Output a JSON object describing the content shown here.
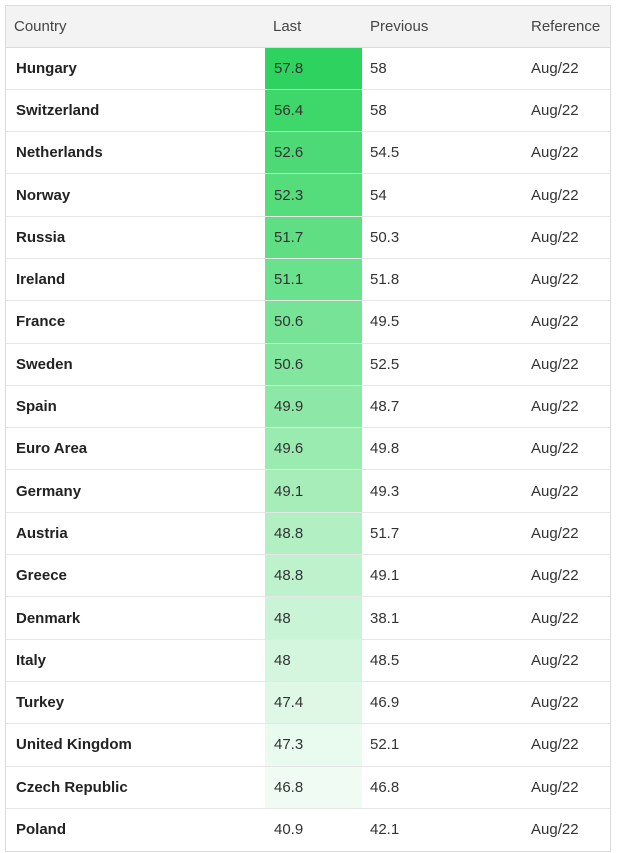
{
  "table": {
    "headers": {
      "country": "Country",
      "last": "Last",
      "previous": "Previous",
      "reference": "Reference"
    },
    "rows": [
      {
        "country": "Hungary",
        "last": "57.8",
        "previous": "58",
        "reference": "Aug/22",
        "heat_color": "#2ed35f"
      },
      {
        "country": "Switzerland",
        "last": "56.4",
        "previous": "58",
        "reference": "Aug/22",
        "heat_color": "#3dd76a"
      },
      {
        "country": "Netherlands",
        "last": "52.6",
        "previous": "54.5",
        "reference": "Aug/22",
        "heat_color": "#4dda76"
      },
      {
        "country": "Norway",
        "last": "52.3",
        "previous": "54",
        "reference": "Aug/22",
        "heat_color": "#55dc7b"
      },
      {
        "country": "Russia",
        "last": "51.7",
        "previous": "50.3",
        "reference": "Aug/22",
        "heat_color": "#5fde83"
      },
      {
        "country": "Ireland",
        "last": "51.1",
        "previous": "51.8",
        "reference": "Aug/22",
        "heat_color": "#6ae18c"
      },
      {
        "country": "France",
        "last": "50.6",
        "previous": "49.5",
        "reference": "Aug/22",
        "heat_color": "#77e396"
      },
      {
        "country": "Sweden",
        "last": "50.6",
        "previous": "52.5",
        "reference": "Aug/22",
        "heat_color": "#82e69f"
      },
      {
        "country": "Spain",
        "last": "49.9",
        "previous": "48.7",
        "reference": "Aug/22",
        "heat_color": "#8de8a7"
      },
      {
        "country": "Euro Area",
        "last": "49.6",
        "previous": "49.8",
        "reference": "Aug/22",
        "heat_color": "#99ebb0"
      },
      {
        "country": "Germany",
        "last": "49.1",
        "previous": "49.3",
        "reference": "Aug/22",
        "heat_color": "#a6edba"
      },
      {
        "country": "Austria",
        "last": "48.8",
        "previous": "51.7",
        "reference": "Aug/22",
        "heat_color": "#b2f0c4"
      },
      {
        "country": "Greece",
        "last": "48.8",
        "previous": "49.1",
        "reference": "Aug/22",
        "heat_color": "#bef2cd"
      },
      {
        "country": "Denmark",
        "last": "48",
        "previous": "38.1",
        "reference": "Aug/22",
        "heat_color": "#c9f4d6"
      },
      {
        "country": "Italy",
        "last": "48",
        "previous": "48.5",
        "reference": "Aug/22",
        "heat_color": "#d4f6de"
      },
      {
        "country": "Turkey",
        "last": "47.4",
        "previous": "46.9",
        "reference": "Aug/22",
        "heat_color": "#dff8e6"
      },
      {
        "country": "United Kingdom",
        "last": "47.3",
        "previous": "52.1",
        "reference": "Aug/22",
        "heat_color": "#e9faee"
      },
      {
        "country": "Czech Republic",
        "last": "46.8",
        "previous": "46.8",
        "reference": "Aug/22",
        "heat_color": "#f0fbf3"
      },
      {
        "country": "Poland",
        "last": "40.9",
        "previous": "42.1",
        "reference": "Aug/22",
        "heat_color": "#ffffff"
      }
    ]
  }
}
